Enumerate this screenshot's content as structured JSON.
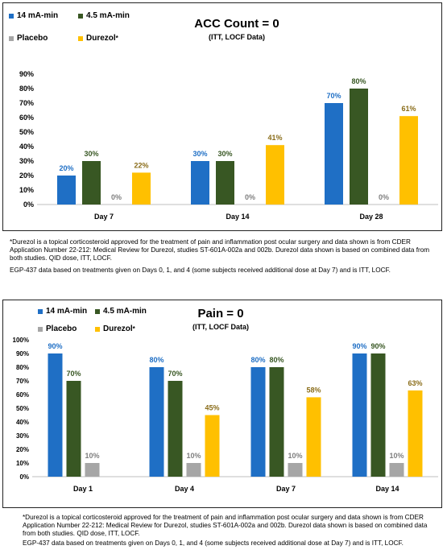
{
  "colors": {
    "14 mA-min": "#1f6fc5",
    "4.5 mA-min": "#385723",
    "Placebo": "#a6a6a6",
    "Durezol": "#ffc000",
    "label_14": "#1f6fc5",
    "label_45": "#385723",
    "label_placebo": "#7f7f7f",
    "label_durezol": "#8a6d1a"
  },
  "legend": {
    "items": [
      "14 mA-min",
      "4.5 mA-min",
      "Placebo",
      "Durezol"
    ],
    "durezol_mark": "*"
  },
  "chart_data": [
    {
      "type": "bar",
      "title": "ACC Count = 0",
      "subtitle": "(ITT, LOCF Data)",
      "categories": [
        "Day 7",
        "Day 14",
        "Day 28"
      ],
      "series": [
        {
          "name": "14 mA-min",
          "values": [
            20,
            30,
            70
          ],
          "labels": [
            "20%",
            "30%",
            "70%"
          ]
        },
        {
          "name": "4.5 mA-min",
          "values": [
            30,
            30,
            80
          ],
          "labels": [
            "30%",
            "30%",
            "80%"
          ]
        },
        {
          "name": "Placebo",
          "values": [
            0,
            0,
            0
          ],
          "labels": [
            "0%",
            "0%",
            "0%"
          ]
        },
        {
          "name": "Durezol",
          "values": [
            22,
            41,
            61
          ],
          "labels": [
            "22%",
            "41%",
            "61%"
          ]
        }
      ],
      "yticks": [
        "0%",
        "10%",
        "20%",
        "30%",
        "40%",
        "50%",
        "60%",
        "70%",
        "80%",
        "90%"
      ],
      "ylim": [
        0,
        90
      ],
      "grid": false,
      "legend_position": "top-left"
    },
    {
      "type": "bar",
      "title": "Pain = 0",
      "subtitle": "(ITT, LOCF Data)",
      "categories": [
        "Day 1",
        "Day 4",
        "Day 7",
        "Day 14"
      ],
      "series": [
        {
          "name": "14 mA-min",
          "values": [
            90,
            80,
            80,
            90
          ],
          "labels": [
            "90%",
            "80%",
            "80%",
            "90%"
          ]
        },
        {
          "name": "4.5 mA-min",
          "values": [
            70,
            70,
            80,
            90
          ],
          "labels": [
            "70%",
            "70%",
            "80%",
            "90%"
          ]
        },
        {
          "name": "Placebo",
          "values": [
            10,
            10,
            10,
            10
          ],
          "labels": [
            "10%",
            "10%",
            "10%",
            "10%"
          ]
        },
        {
          "name": "Durezol",
          "values": [
            null,
            45,
            58,
            63
          ],
          "labels": [
            "",
            "45%",
            "58%",
            "63%"
          ]
        }
      ],
      "yticks": [
        "0%",
        "10%",
        "20%",
        "30%",
        "40%",
        "50%",
        "60%",
        "70%",
        "80%",
        "90%",
        "100%"
      ],
      "ylim": [
        0,
        100
      ],
      "grid": false,
      "legend_position": "top-left"
    }
  ],
  "notes1": {
    "footnote": "*Durezol is a topical corticosteroid approved for the treatment of pain and inflammation post ocular surgery and data shown is from CDER Application Number 22-212: Medical Review for Durezol, studies ST-601A-002a and 002b.  Durezol data shown is based on combined data from both studies. QID dose, ITT, LOCF.",
    "egp": "EGP-437 data based on treatments given on Days 0, 1, and 4 (some subjects received additional dose at Day 7) and is ITT, LOCF."
  },
  "notes2": {
    "footnote": "*Durezol is a topical corticosteroid approved for the treatment of pain and inflammation post ocular surgery and data shown is from CDER Application Number 22-212: Medical Review for Durezol, studies ST-601A-002a and 002b.  Durezol data shown is based on combined data from both studies. QID dose, ITT, LOCF.",
    "egp": "EGP-437 data based on treatments given on Days 0, 1, and 4 (some subjects received additional dose at Day 7) and is ITT, LOCF."
  }
}
